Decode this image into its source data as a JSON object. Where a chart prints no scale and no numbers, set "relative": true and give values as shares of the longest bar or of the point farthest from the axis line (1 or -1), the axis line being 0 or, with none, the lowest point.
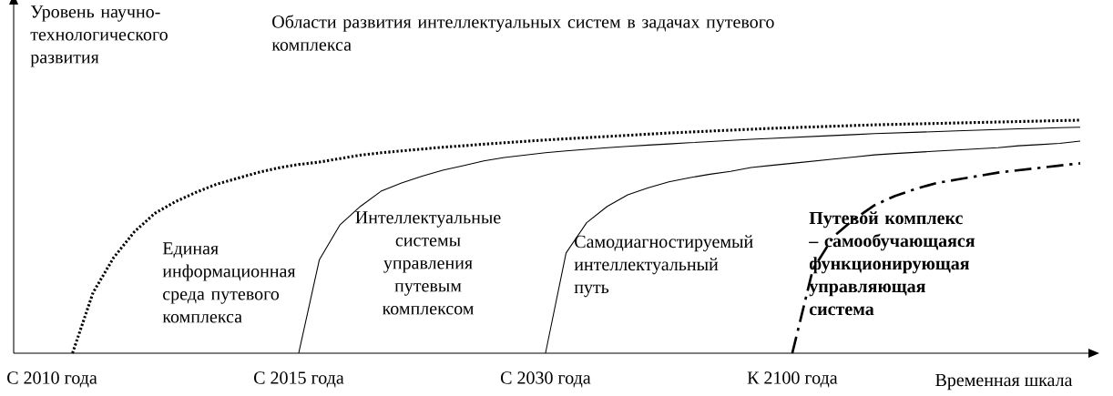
{
  "chart_data": {
    "type": "line",
    "relative": true,
    "xlabel": "Временная шкала",
    "ylabel": "Уровень научно-технологического развития",
    "categories": [
      "С 2010 года",
      null,
      null,
      null,
      null,
      null,
      null,
      null,
      null,
      null,
      null,
      null,
      "С 2015 года",
      null,
      null,
      null,
      null,
      null,
      null,
      null,
      null,
      null,
      null,
      null,
      "С 2030 года",
      null,
      null,
      null,
      null,
      null,
      null,
      null,
      null,
      null,
      null,
      null,
      "К 2100 года",
      null,
      null,
      null,
      null,
      null,
      null,
      null,
      null,
      null,
      null,
      null,
      null,
      null,
      null
    ],
    "annotations": [
      "Области развития интеллектуальных систем в задачах путевого комплекса",
      "Единая информационная среда путевого комплекса",
      "Интеллектуальные системы управления путевым комплексом",
      "Самодиагностируемый интеллектуальный путь",
      "Путевой комплекс – самообучающаяся функционирующая управляющая система"
    ],
    "series": [
      {
        "color": "#000000",
        "line_style": "dotted",
        "values": [
          null,
          0,
          0.26,
          0.41,
          0.52,
          0.6,
          0.65,
          0.69,
          0.725,
          0.75,
          0.775,
          0.795,
          0.81,
          0.82,
          0.835,
          0.85,
          0.86,
          0.868,
          0.876,
          0.884,
          0.89,
          0.897,
          0.903,
          0.909,
          0.915,
          0.92,
          0.925,
          0.93,
          0.935,
          0.94,
          0.945,
          0.949,
          0.953,
          0.957,
          0.961,
          0.965,
          0.968,
          0.971,
          0.974,
          0.977,
          0.98,
          0.982,
          0.984,
          0.986,
          0.988,
          0.99,
          0.992,
          0.994,
          0.996,
          0.998,
          1
        ]
      },
      {
        "color": "#000000",
        "line_style": "solid",
        "values": [
          null,
          null,
          null,
          null,
          null,
          null,
          null,
          null,
          null,
          null,
          null,
          null,
          0,
          0.4,
          0.55,
          0.63,
          0.695,
          0.73,
          0.76,
          0.785,
          0.805,
          0.825,
          0.84,
          0.85,
          0.86,
          0.868,
          0.875,
          0.882,
          0.888,
          0.893,
          0.898,
          0.903,
          0.908,
          0.913,
          0.918,
          0.922,
          0.926,
          0.93,
          0.934,
          0.938,
          0.942,
          0.945,
          0.948,
          0.951,
          0.954,
          0.957,
          0.96,
          0.963,
          0.965,
          0.968,
          0.97
        ]
      },
      {
        "color": "#000000",
        "line_style": "solid",
        "values": [
          null,
          null,
          null,
          null,
          null,
          null,
          null,
          null,
          null,
          null,
          null,
          null,
          null,
          null,
          null,
          null,
          null,
          null,
          null,
          null,
          null,
          null,
          null,
          null,
          0,
          0.43,
          0.56,
          0.63,
          0.68,
          0.71,
          0.735,
          0.753,
          0.768,
          0.78,
          0.797,
          0.806,
          0.815,
          0.824,
          0.833,
          0.842,
          0.851,
          0.857,
          0.862,
          0.867,
          0.872,
          0.877,
          0.882,
          0.89,
          0.895,
          0.9,
          0.91
        ]
      },
      {
        "color": "#000000",
        "line_style": "dashed",
        "values": [
          null,
          null,
          null,
          null,
          null,
          null,
          null,
          null,
          null,
          null,
          null,
          null,
          null,
          null,
          null,
          null,
          null,
          null,
          null,
          null,
          null,
          null,
          null,
          null,
          null,
          null,
          null,
          null,
          null,
          null,
          null,
          null,
          null,
          null,
          null,
          null,
          0,
          0.36,
          0.5,
          0.575,
          0.635,
          0.675,
          0.705,
          0.73,
          0.745,
          0.76,
          0.775,
          0.785,
          0.795,
          0.805,
          0.815
        ]
      }
    ]
  }
}
